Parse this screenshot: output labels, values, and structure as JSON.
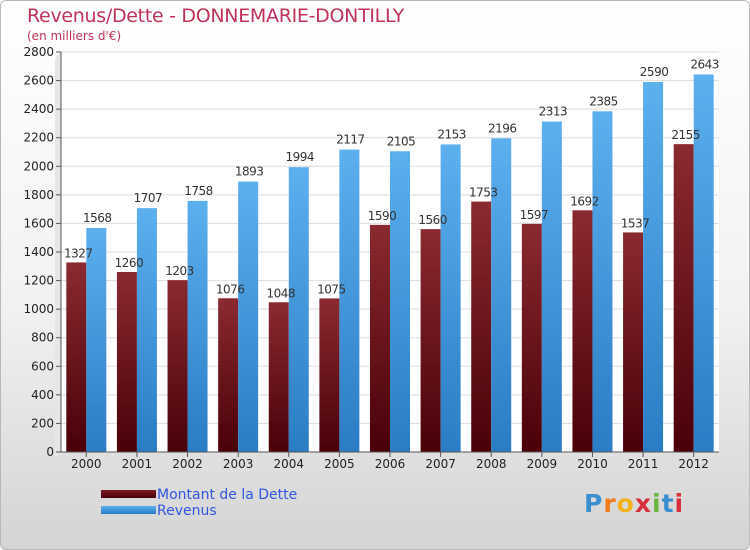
{
  "header": {
    "title": "Revenus/Dette - DONNEMARIE-DONTILLY",
    "subtitle": "(en milliers d'€)"
  },
  "legend": {
    "dette_label": "Montant de la Dette",
    "revenus_label": "Revenus"
  },
  "logo": {
    "letters": [
      "P",
      "r",
      "o",
      "x",
      "i",
      "t",
      "i"
    ],
    "colors": [
      "#3a8fd0",
      "#f07d1a",
      "#f3b21b",
      "#d8303a",
      "#6ab540",
      "#3a8fd0",
      "#d8303a"
    ]
  },
  "colors": {
    "dette": "#7a1c24",
    "revenus": "#4da3e6",
    "title": "#c0325a"
  },
  "chart_data": {
    "type": "bar",
    "title": "Revenus/Dette - DONNEMARIE-DONTILLY",
    "subtitle": "(en milliers d'€)",
    "xlabel": "",
    "ylabel": "",
    "categories": [
      "2000",
      "2001",
      "2002",
      "2003",
      "2004",
      "2005",
      "2006",
      "2007",
      "2008",
      "2009",
      "2010",
      "2011",
      "2012"
    ],
    "series": [
      {
        "name": "Montant de la Dette",
        "values": [
          1327,
          1260,
          1203,
          1076,
          1048,
          1075,
          1590,
          1560,
          1753,
          1597,
          1692,
          1537,
          2155
        ],
        "labels": [
          "1327",
          "1260",
          "1203",
          "1076",
          "1048",
          "1075",
          "1590",
          "1560",
          "1753",
          "1597",
          "1692",
          "1537",
          "2155"
        ]
      },
      {
        "name": "Revenus",
        "values": [
          1568,
          1707,
          1758,
          1893,
          1994,
          2117,
          2105,
          2153,
          2196,
          2313,
          2385,
          2590,
          2643
        ],
        "labels": [
          "1568",
          "1707",
          "1758",
          "1893",
          "1994",
          "2117",
          "2105",
          "2153",
          "2196",
          "2313",
          "2385",
          "2590",
          "2643"
        ]
      }
    ],
    "ylim": [
      0,
      2800
    ],
    "yticks": [
      "0",
      "200",
      "400",
      "600",
      "800",
      "1000",
      "1200",
      "1400",
      "1600",
      "1800",
      "2000",
      "2200",
      "2400",
      "2600",
      "2800"
    ],
    "grid": true,
    "legend_position": "bottom-left"
  }
}
